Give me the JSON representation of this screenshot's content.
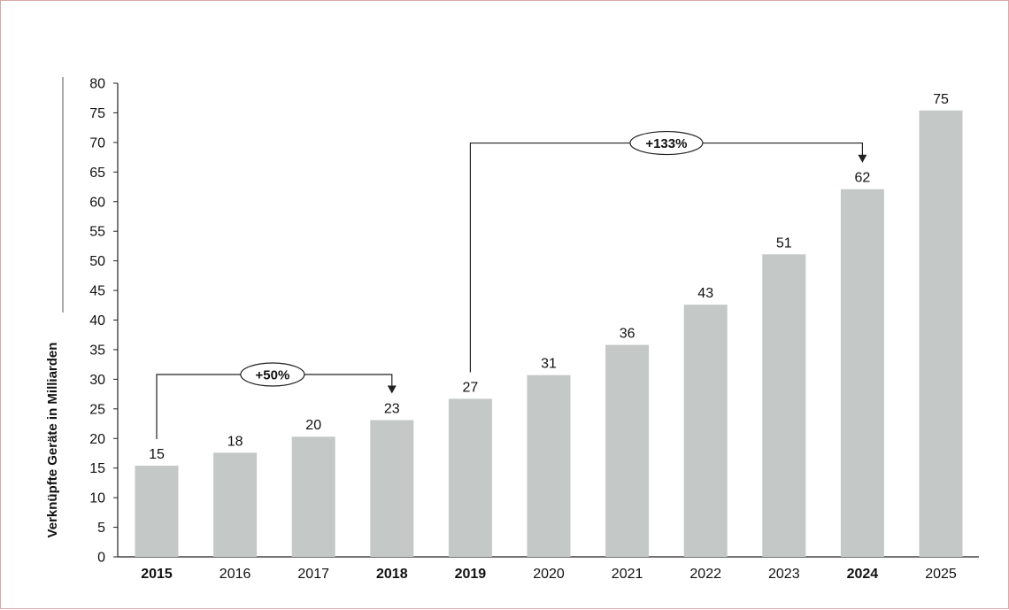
{
  "chart_data": {
    "type": "bar",
    "title": "",
    "xlabel": "",
    "ylabel": "Verknüpfte Geräte in Milliarden",
    "ylim": [
      0,
      80
    ],
    "yticks": [
      0,
      5,
      10,
      15,
      20,
      25,
      30,
      35,
      40,
      45,
      50,
      55,
      60,
      65,
      70,
      75,
      80
    ],
    "categories": [
      "2015",
      "2016",
      "2017",
      "2018",
      "2019",
      "2020",
      "2021",
      "2022",
      "2023",
      "2024",
      "2025"
    ],
    "bold_categories": [
      "2015",
      "2018",
      "2019",
      "2024"
    ],
    "values": [
      15.4,
      17.6,
      20.3,
      23.1,
      26.7,
      30.7,
      35.8,
      42.6,
      51.1,
      62.1,
      75.4
    ],
    "data_labels": [
      "15",
      "18",
      "20",
      "23",
      "27",
      "31",
      "36",
      "43",
      "51",
      "62",
      "75"
    ],
    "bar_color": "#c4c8c7",
    "grid": false,
    "annotations": [
      {
        "from": "2015",
        "to": "2018",
        "level": 30.8,
        "label": "+50%"
      },
      {
        "from": "2019",
        "to": "2024",
        "level": 69.9,
        "label": "+133%"
      }
    ]
  }
}
